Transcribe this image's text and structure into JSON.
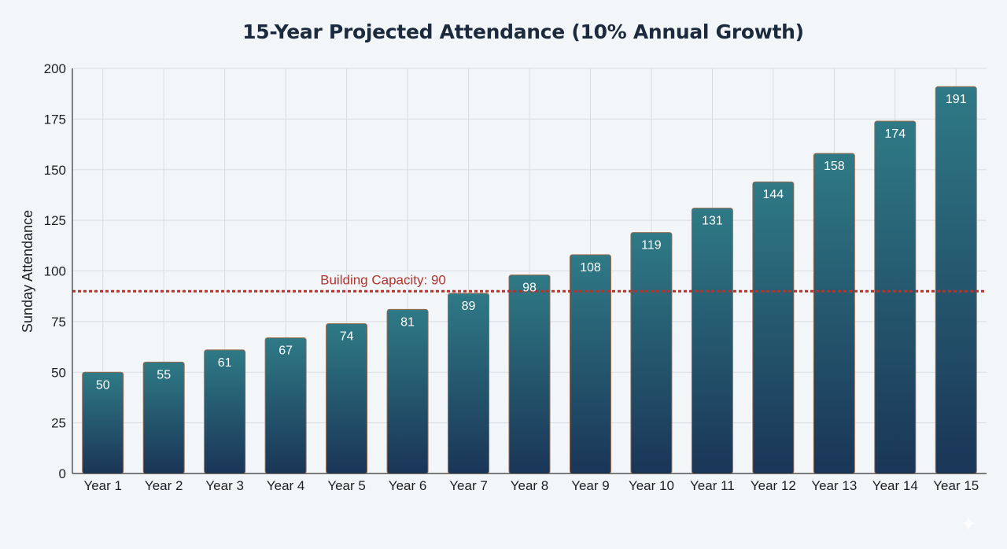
{
  "chart_data": {
    "type": "bar",
    "title": "15-Year Projected Attendance (10% Annual Growth)",
    "xlabel": "",
    "ylabel": "Sunday Attendance",
    "categories": [
      "Year 1",
      "Year 2",
      "Year 3",
      "Year 4",
      "Year 5",
      "Year 6",
      "Year 7",
      "Year 8",
      "Year 9",
      "Year 10",
      "Year 11",
      "Year 12",
      "Year 13",
      "Year 14",
      "Year 15"
    ],
    "values": [
      50,
      55,
      61,
      67,
      74,
      81,
      89,
      98,
      108,
      119,
      131,
      144,
      158,
      174,
      191
    ],
    "data_labels": [
      "50",
      "55",
      "61",
      "67",
      "74",
      "81",
      "89",
      "98",
      "108",
      "119",
      "131",
      "144",
      "158",
      "174",
      "191"
    ],
    "ylim": [
      0,
      200
    ],
    "yticks": [
      0,
      25,
      50,
      75,
      100,
      125,
      150,
      175,
      200
    ],
    "grid": true,
    "legend": "none",
    "reference_line": {
      "value": 90,
      "label": "Building Capacity: 90",
      "color": "#b3342d",
      "style": "dotted"
    },
    "colors": {
      "bar_top": "#2f7a86",
      "bar_bottom": "#1a3557",
      "bar_edge": "#9a6a4e"
    }
  }
}
